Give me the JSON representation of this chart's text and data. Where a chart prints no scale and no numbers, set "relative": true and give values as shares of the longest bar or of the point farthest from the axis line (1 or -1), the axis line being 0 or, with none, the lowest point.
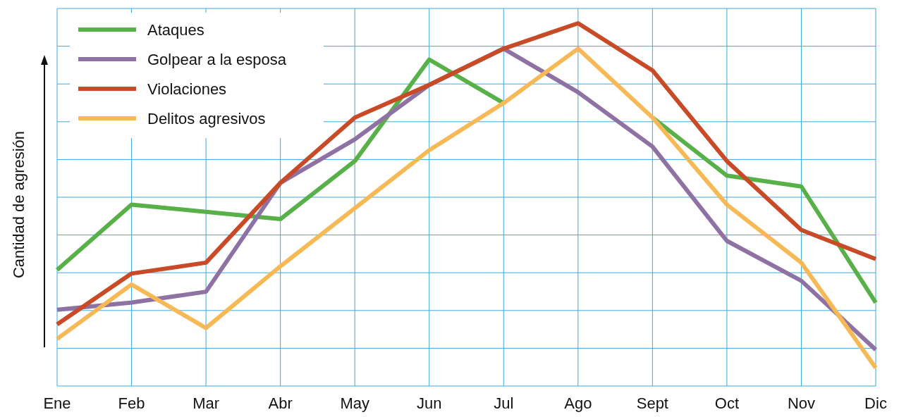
{
  "chart_data": {
    "type": "line",
    "relative": true,
    "ylabel": "Cantidad de agresión",
    "categories": [
      "Ene",
      "Feb",
      "Mar",
      "Abr",
      "May",
      "Jun",
      "Jul",
      "Ago",
      "Sept",
      "Oct",
      "Nov",
      "Dic"
    ],
    "grid": true,
    "legend": "top left",
    "marker": "none",
    "line_style": "solid",
    "series": [
      {
        "name": "Ataques",
        "color": "#58b148",
        "values": [
          0.32,
          0.5,
          0.48,
          0.46,
          0.62,
          0.9,
          0.78,
          null,
          0.74,
          0.58,
          0.55,
          0.23
        ]
      },
      {
        "name": "Golpear a la esposa",
        "color": "#8d72a3",
        "values": [
          0.21,
          0.23,
          0.26,
          0.56,
          0.68,
          0.83,
          0.93,
          0.81,
          0.66,
          0.4,
          0.29,
          0.1
        ]
      },
      {
        "name": "Violaciones",
        "color": "#c94a26",
        "values": [
          0.17,
          0.31,
          0.34,
          0.56,
          0.74,
          0.83,
          0.93,
          1,
          0.87,
          0.62,
          0.43,
          0.35
        ]
      },
      {
        "name": "Delitos agresivos",
        "color": "#f7b955",
        "values": [
          0.13,
          0.28,
          0.16,
          0.33,
          0.49,
          0.65,
          0.78,
          0.93,
          0.74,
          0.5,
          0.34,
          0.05
        ]
      }
    ]
  }
}
